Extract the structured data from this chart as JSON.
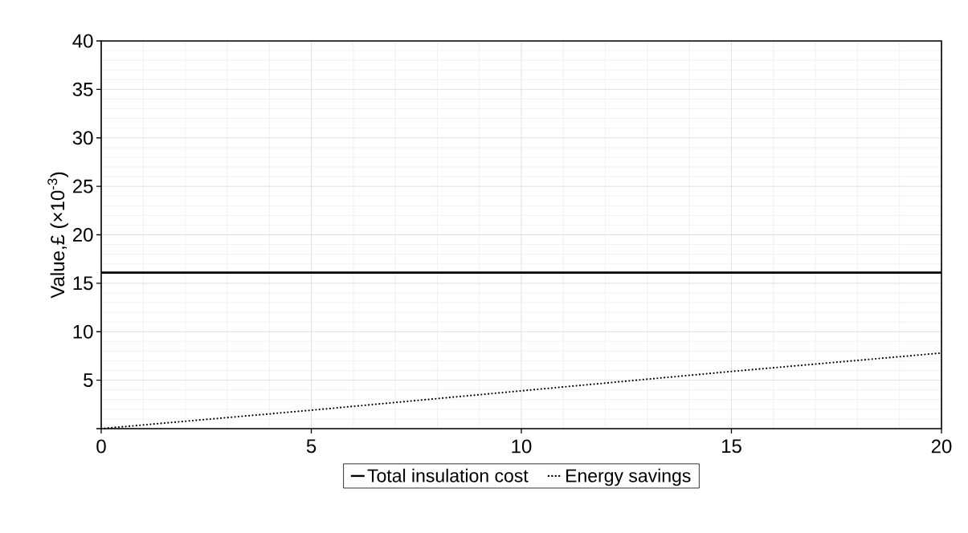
{
  "chart_data": {
    "type": "line",
    "ylabel": "Value,£ (×10$^{-3}$)",
    "x": [
      0,
      5,
      10,
      15,
      20
    ],
    "series": [
      {
        "name": "Total insulation cost",
        "color": "#000000",
        "line_style": "solid",
        "values": [
          16.1,
          16.1,
          16.1,
          16.1,
          16.1
        ]
      },
      {
        "name": "Energy savings",
        "color": "#000000",
        "line_style": "dotted",
        "values": [
          0,
          1.9,
          3.9,
          5.9,
          7.8
        ]
      }
    ],
    "xlim": [
      0,
      20
    ],
    "ylim": [
      0,
      40
    ],
    "xticks": [
      0,
      5,
      10,
      15,
      20
    ],
    "yticks": [
      {
        "value": 0,
        "label": null
      },
      5,
      10,
      15,
      20,
      25,
      30,
      35,
      40
    ],
    "grid": true,
    "legend": "bottom",
    "marker": "none"
  }
}
